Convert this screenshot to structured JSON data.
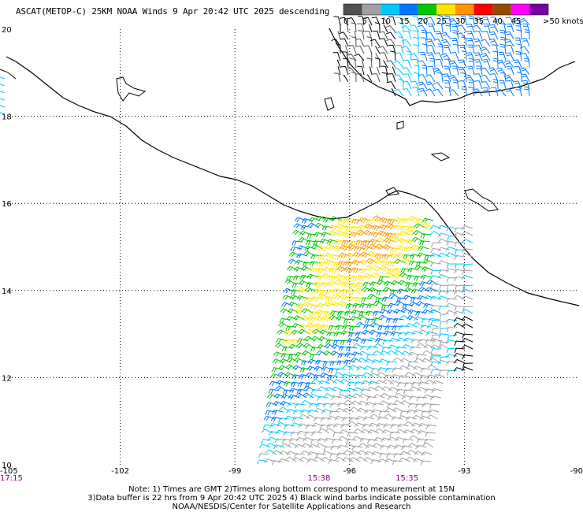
{
  "header": {
    "title": "ASCAT(METOP-C) 25KM NOAA Winds  9 Apr 20:42 UTC 2025 descending"
  },
  "legend": {
    "labels": [
      "0",
      "5",
      "10",
      "15",
      "20",
      "25",
      "30",
      "35",
      "40",
      "45",
      ">50 knots"
    ],
    "colors": [
      "#505050",
      "#a0a0a0",
      "#00c8ff",
      "#0078ff",
      "#00c800",
      "#ffe600",
      "#ff9600",
      "#ff0000",
      "#964b00",
      "#ff00ff",
      "#7800a0"
    ]
  },
  "axes": {
    "lon_labels": [
      "-105",
      "-102",
      "-99",
      "-96",
      "-93",
      "-90"
    ],
    "lat_labels": [
      "20",
      "18",
      "16",
      "14",
      "12",
      "10"
    ],
    "lon_values": [
      -105,
      -102,
      -99,
      -96,
      -93,
      -90
    ],
    "lat_values": [
      20,
      18,
      16,
      14,
      12,
      10
    ]
  },
  "time_labels": [
    {
      "text": "17:15",
      "lon": -105
    },
    {
      "text": "15:38",
      "lon": -96.8
    },
    {
      "text": "15:35",
      "lon": -94.5
    }
  ],
  "footer": {
    "line1": "Note: 1) Times are GMT 2)Times along bottom correspond to measurement at 15N",
    "line2": "3)Data buffer is 22 hrs from 9 Apr 20:42 UTC 2025 4) Black wind barbs indicate possible contamination",
    "line3": "NOAA/NESDIS/Center for Satellite Applications and Research"
  },
  "colors": {
    "grid": "#000000",
    "time_label": "#800080",
    "coast": "#000000"
  }
}
